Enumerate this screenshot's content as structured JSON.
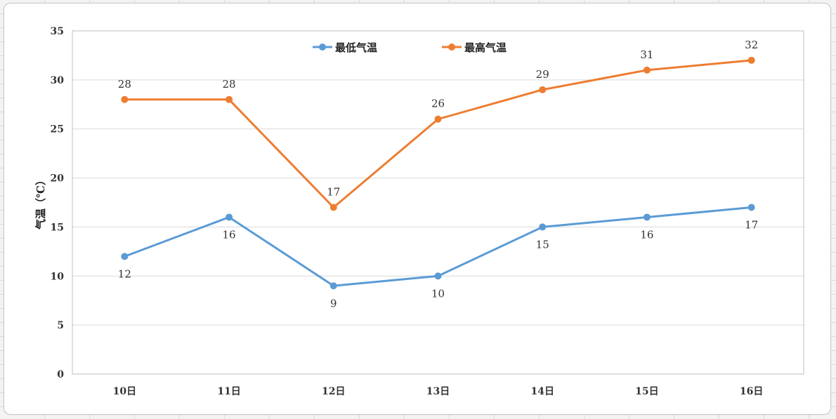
{
  "chart_data": {
    "type": "line",
    "title": "",
    "xlabel": "",
    "ylabel": "气温（℃）",
    "categories": [
      "10日",
      "11日",
      "12日",
      "13日",
      "14日",
      "15日",
      "16日"
    ],
    "ylim": [
      0,
      35
    ],
    "yticks": [
      0,
      5,
      10,
      15,
      20,
      25,
      30,
      35
    ],
    "grid": true,
    "legend_position": "top-center",
    "series": [
      {
        "name": "最低气温",
        "color": "#5b9bd5",
        "values": [
          12,
          16,
          9,
          10,
          15,
          16,
          17
        ],
        "label_position": "below"
      },
      {
        "name": "最高气温",
        "color": "#ed7d31",
        "values": [
          28,
          28,
          17,
          26,
          29,
          31,
          32
        ],
        "label_position": "above"
      }
    ]
  }
}
